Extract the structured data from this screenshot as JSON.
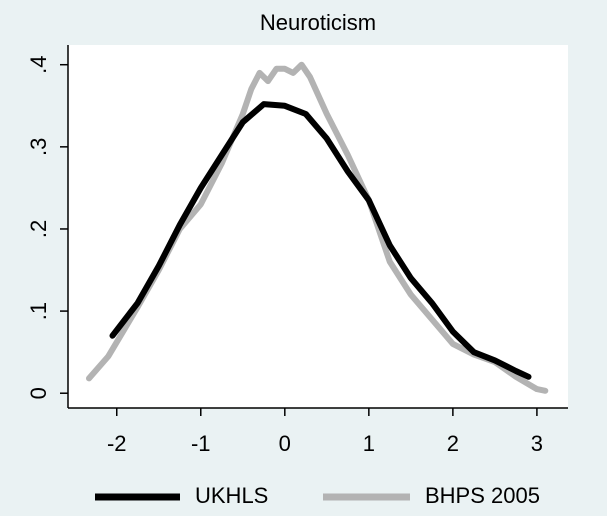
{
  "chart_data": {
    "type": "line",
    "title": "Neuroticism",
    "series": [
      {
        "name": "UKHLS",
        "color": "#000000",
        "x": [
          -2.05,
          -1.75,
          -1.5,
          -1.25,
          -1,
          -0.75,
          -0.5,
          -0.25,
          0,
          0.25,
          0.5,
          0.75,
          1,
          1.25,
          1.5,
          1.75,
          2,
          2.25,
          2.5,
          2.75,
          2.9
        ],
        "values": [
          0.07,
          0.11,
          0.155,
          0.205,
          0.25,
          0.29,
          0.33,
          0.352,
          0.35,
          0.34,
          0.31,
          0.27,
          0.235,
          0.18,
          0.14,
          0.11,
          0.075,
          0.05,
          0.04,
          0.027,
          0.02
        ]
      },
      {
        "name": "BHPS 2005",
        "color": "#b3b3b3",
        "x": [
          -2.33,
          -2.1,
          -1.75,
          -1.5,
          -1.25,
          -1,
          -0.75,
          -0.5,
          -0.4,
          -0.3,
          -0.2,
          -0.1,
          0,
          0.1,
          0.2,
          0.3,
          0.5,
          0.75,
          1,
          1.25,
          1.5,
          1.75,
          2,
          2.25,
          2.5,
          2.75,
          3,
          3.1
        ],
        "values": [
          0.018,
          0.045,
          0.105,
          0.15,
          0.2,
          0.23,
          0.28,
          0.34,
          0.37,
          0.39,
          0.38,
          0.395,
          0.395,
          0.39,
          0.4,
          0.385,
          0.34,
          0.29,
          0.235,
          0.16,
          0.12,
          0.09,
          0.06,
          0.047,
          0.038,
          0.02,
          0.005,
          0.003
        ]
      }
    ],
    "xlim": [
      -2.58,
      3.37
    ],
    "ylim": [
      -0.018,
      0.424
    ],
    "xticks": [
      -2,
      -1,
      0,
      1,
      2,
      3
    ],
    "yticks": [
      0,
      {
        "value": 0.1,
        "label": ".1"
      },
      {
        "value": 0.2,
        "label": ".2"
      },
      {
        "value": 0.3,
        "label": ".3"
      },
      {
        "value": 0.4,
        "label": ".4"
      }
    ],
    "grid": false,
    "legend": "bottom"
  }
}
